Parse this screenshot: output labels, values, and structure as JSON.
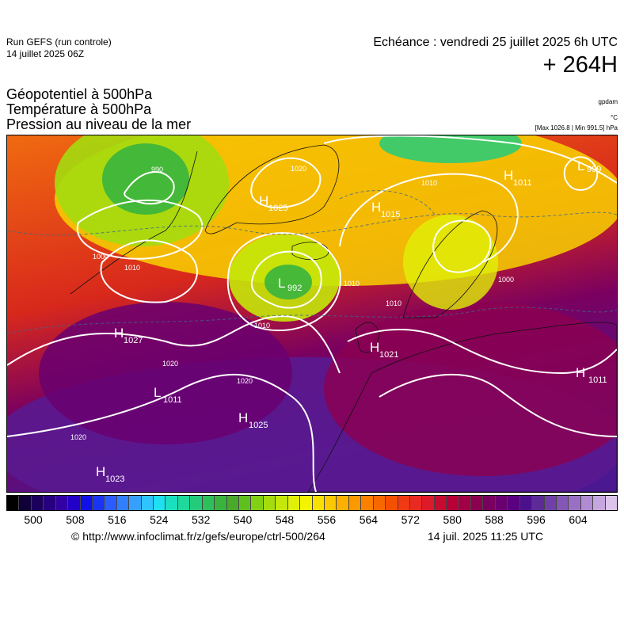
{
  "header": {
    "run": "Run GEFS (run controle)",
    "run_date": "14 juillet 2025 06Z",
    "echeance": "Echéance : vendredi 25 juillet 2025 6h UTC",
    "hours": "+ 264H",
    "titles": [
      "Géopotentiel à 500hPa",
      "Température à 500hPa",
      "Pression au niveau de la mer"
    ],
    "unit_gpdam": "gpdam",
    "unit_c": "°C",
    "maxmin": "[Max 1026.8 | Min 991.5] hPa"
  },
  "map": {
    "pressure_centers": [
      {
        "type": "H",
        "value": "1027"
      },
      {
        "type": "L",
        "value": "1011"
      },
      {
        "type": "H",
        "value": "1025"
      },
      {
        "type": "H",
        "value": "1023"
      },
      {
        "type": "H",
        "value": "1021"
      },
      {
        "type": "L",
        "value": "992"
      },
      {
        "type": "H",
        "value": "1025"
      },
      {
        "type": "H",
        "value": "1015"
      },
      {
        "type": "H",
        "value": "1011"
      },
      {
        "type": "L",
        "value": "999"
      },
      {
        "type": "H",
        "value": "1011"
      }
    ],
    "isobar_labels": [
      "990",
      "1000",
      "1010",
      "1020",
      "1010",
      "1020",
      "1020",
      "1010",
      "1000",
      "1010",
      "1020",
      "1010"
    ]
  },
  "scale": {
    "ticks": [
      "500",
      "508",
      "516",
      "524",
      "532",
      "540",
      "548",
      "556",
      "564",
      "572",
      "580",
      "588",
      "596",
      "604"
    ],
    "colors": [
      "#000000",
      "#10003a",
      "#1c005c",
      "#28007f",
      "#3300a4",
      "#2200c8",
      "#1010e8",
      "#1a34f4",
      "#2a5cff",
      "#2f7fff",
      "#36a0ff",
      "#30c4ff",
      "#1ee0f0",
      "#1ae0c0",
      "#1ed89c",
      "#22cc7a",
      "#2cc05a",
      "#38b43e",
      "#4aa82a",
      "#5ec01e",
      "#82d014",
      "#a4dc0e",
      "#c4e80a",
      "#e0f008",
      "#f4f400",
      "#f8e000",
      "#fcc800",
      "#fcb000",
      "#fc9800",
      "#fc8000",
      "#f86800",
      "#f45000",
      "#f03a14",
      "#e82a20",
      "#dc1a2a",
      "#c80a30",
      "#b80038",
      "#a20046",
      "#8c0050",
      "#7a0060",
      "#6a0070",
      "#5a0080",
      "#4c108c",
      "#5e2a98",
      "#7040a8",
      "#8456b6",
      "#9a70c4",
      "#b08ad2",
      "#c6a6de",
      "#dcc4ea"
    ]
  },
  "footer": {
    "url": "© http://www.infoclimat.fr/z/gefs/europe/ctrl-500/264",
    "created": "14 juil. 2025 11:25 UTC"
  }
}
